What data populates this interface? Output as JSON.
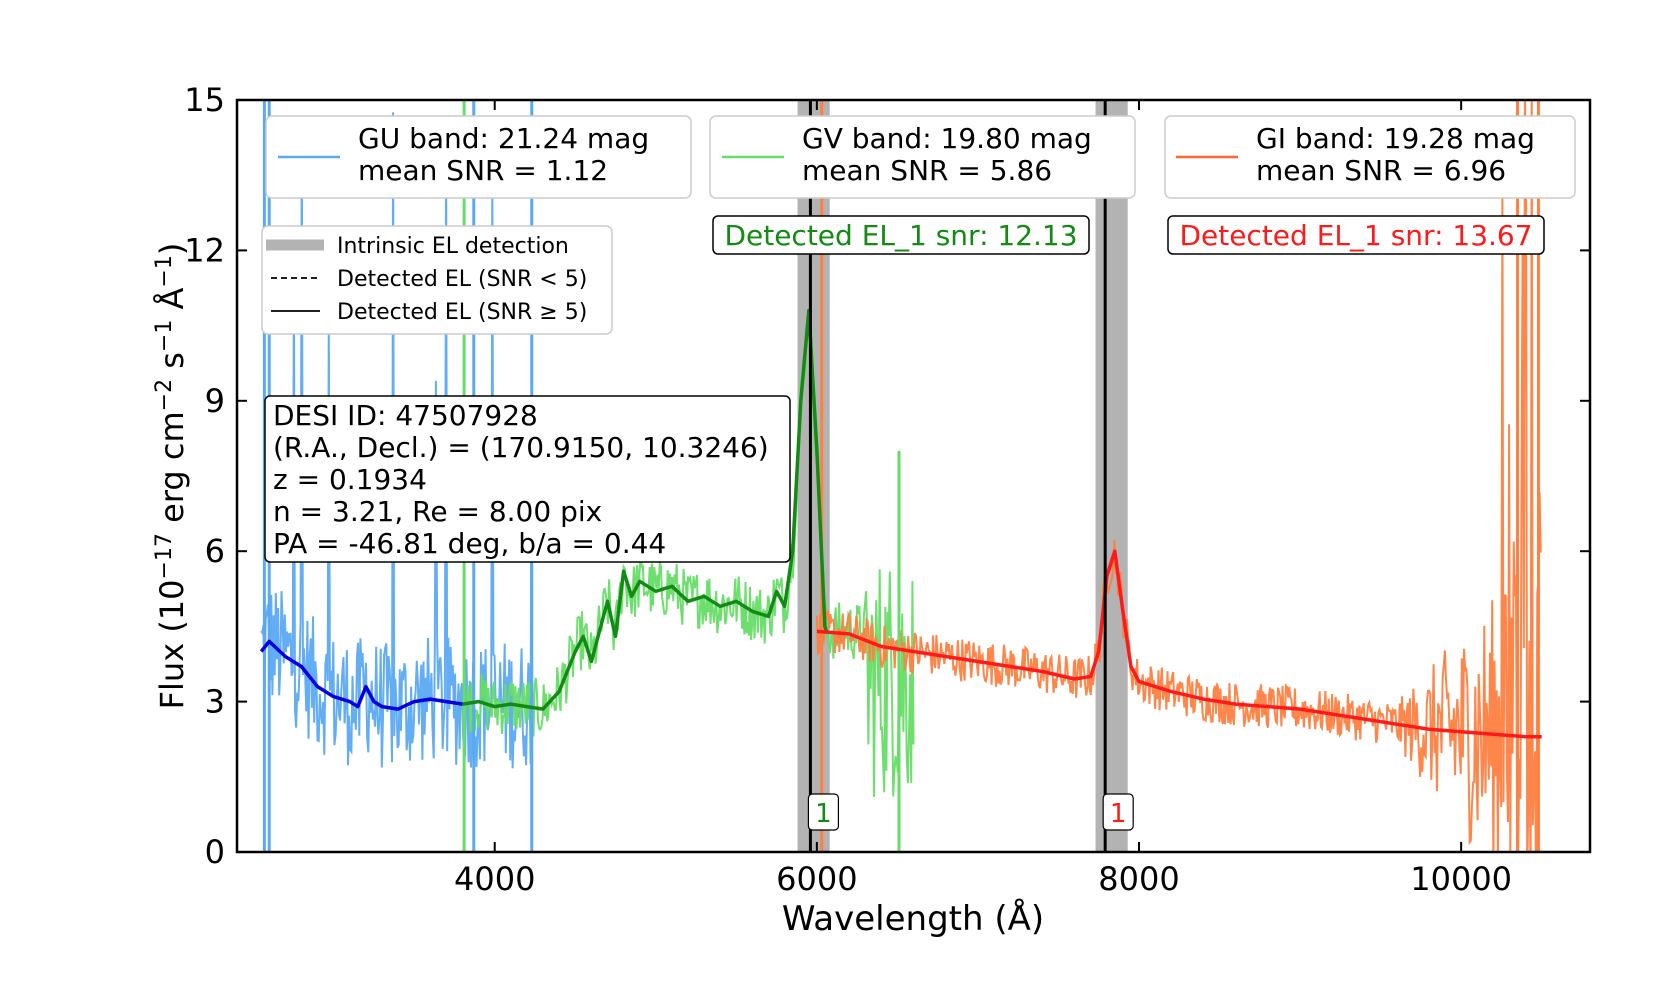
{
  "chart_data": {
    "type": "line",
    "xlabel": "Wavelength (Å)",
    "ylabel": {
      "prefix": "Flux (10",
      "exp1": "−17",
      "mid": " erg cm",
      "exp2": "−2",
      "mid2": " s",
      "exp3": "−1",
      "mid3": " Å",
      "exp4": "−1",
      "suffix": ")"
    },
    "xlim": [
      2400,
      10800
    ],
    "ylim": [
      0,
      15
    ],
    "xticks": [
      4000,
      6000,
      8000,
      10000
    ],
    "yticks": [
      0,
      3,
      6,
      9,
      12,
      15
    ],
    "colors": {
      "gu_raw": "#5aa9f2",
      "gu_smooth": "#0000e0",
      "gv_raw": "#66dd66",
      "gv_smooth": "#138a13",
      "gi_raw": "#ff8040",
      "gi_smooth": "#ff1a1a",
      "intrinsic": "#b3b3b3"
    },
    "series": [
      {
        "name": "GU band: 21.24 mag",
        "snr_label": "mean SNR = 1.12",
        "raw_range": [
          2550,
          4230
        ],
        "raw_noise": 1.3,
        "smooth": [
          [
            2550,
            4.0
          ],
          [
            2600,
            4.2
          ],
          [
            2700,
            3.9
          ],
          [
            2800,
            3.7
          ],
          [
            2900,
            3.3
          ],
          [
            3000,
            3.1
          ],
          [
            3100,
            3.0
          ],
          [
            3150,
            2.9
          ],
          [
            3200,
            3.3
          ],
          [
            3250,
            3.0
          ],
          [
            3300,
            2.9
          ],
          [
            3400,
            2.85
          ],
          [
            3500,
            3.0
          ],
          [
            3600,
            3.05
          ],
          [
            3700,
            3.0
          ],
          [
            3800,
            2.95
          ]
        ]
      },
      {
        "name": "GV band: 19.80 mag",
        "snr_label": "mean SNR = 5.86",
        "raw_range": [
          3800,
          6600
        ],
        "raw_noise": 0.6,
        "smooth": [
          [
            3800,
            2.95
          ],
          [
            3900,
            3.0
          ],
          [
            4000,
            2.9
          ],
          [
            4100,
            2.95
          ],
          [
            4200,
            2.9
          ],
          [
            4300,
            2.85
          ],
          [
            4400,
            3.2
          ],
          [
            4500,
            4.0
          ],
          [
            4550,
            4.3
          ],
          [
            4600,
            3.8
          ],
          [
            4650,
            4.4
          ],
          [
            4700,
            5.0
          ],
          [
            4750,
            4.3
          ],
          [
            4800,
            5.6
          ],
          [
            4850,
            5.1
          ],
          [
            4900,
            5.4
          ],
          [
            5000,
            5.2
          ],
          [
            5100,
            5.3
          ],
          [
            5200,
            5.0
          ],
          [
            5300,
            5.1
          ],
          [
            5400,
            4.9
          ],
          [
            5500,
            5.0
          ],
          [
            5600,
            4.8
          ],
          [
            5700,
            4.7
          ],
          [
            5750,
            5.2
          ],
          [
            5800,
            4.9
          ],
          [
            5850,
            6.0
          ],
          [
            5900,
            9.0
          ],
          [
            5950,
            10.8
          ],
          [
            6000,
            8.0
          ],
          [
            6050,
            4.5
          ],
          [
            6060,
            4.4
          ]
        ]
      },
      {
        "name": "GI band: 19.28 mag",
        "snr_label": "mean SNR = 6.96",
        "raw_range": [
          6000,
          10500
        ],
        "raw_noise": 0.45,
        "smooth": [
          [
            6000,
            4.4
          ],
          [
            6200,
            4.35
          ],
          [
            6400,
            4.1
          ],
          [
            6600,
            4.0
          ],
          [
            6800,
            3.9
          ],
          [
            7000,
            3.8
          ],
          [
            7200,
            3.7
          ],
          [
            7400,
            3.6
          ],
          [
            7600,
            3.45
          ],
          [
            7700,
            3.5
          ],
          [
            7750,
            4.0
          ],
          [
            7800,
            5.5
          ],
          [
            7850,
            6.0
          ],
          [
            7900,
            4.8
          ],
          [
            7950,
            3.7
          ],
          [
            8000,
            3.4
          ],
          [
            8200,
            3.2
          ],
          [
            8400,
            3.05
          ],
          [
            8600,
            2.95
          ],
          [
            8800,
            2.9
          ],
          [
            9000,
            2.85
          ],
          [
            9200,
            2.75
          ],
          [
            9400,
            2.65
          ],
          [
            9600,
            2.55
          ],
          [
            9800,
            2.45
          ],
          [
            10000,
            2.4
          ],
          [
            10200,
            2.35
          ],
          [
            10400,
            2.3
          ],
          [
            10500,
            2.3
          ]
        ]
      }
    ],
    "intrinsic_bands": [
      [
        5880,
        6080
      ],
      [
        7730,
        7930
      ]
    ],
    "detected_lines": [
      {
        "x": 5960,
        "style": "solid",
        "marker": "1",
        "color": "#138a13",
        "label": "Detected EL_1 snr: 12.13"
      },
      {
        "x": 7790,
        "style": "solid",
        "marker": "1",
        "color": "#ff1a1a",
        "label": "Detected EL_1 snr: 13.67"
      }
    ],
    "legend_styles": {
      "intrinsic": "Intrinsic EL detection",
      "dashed": "Detected EL (SNR < 5)",
      "solid": "Detected EL (SNR ≥ 5)"
    },
    "info_box": [
      "DESI ID: 47507928",
      "(R.A., Decl.) = (170.9150, 10.3246)",
      "z = 0.1934",
      "n = 3.21, Re = 8.00 pix",
      "PA = -46.81 deg, b/a = 0.44"
    ]
  }
}
